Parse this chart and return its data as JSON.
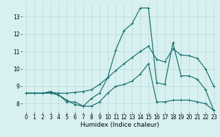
{
  "title": "",
  "xlabel": "Humidex (Indice chaleur)",
  "bg_color": "#d8f0f0",
  "line_color": "#1a7070",
  "grid_color": "#b8d8d8",
  "x_ticks": [
    0,
    1,
    2,
    3,
    4,
    5,
    6,
    7,
    8,
    9,
    10,
    11,
    12,
    13,
    14,
    15,
    16,
    17,
    18,
    19,
    20,
    21,
    22,
    23
  ],
  "y_ticks": [
    8,
    9,
    10,
    11,
    12,
    13
  ],
  "ylim": [
    7.5,
    13.8
  ],
  "xlim": [
    -0.5,
    23.5
  ],
  "series": {
    "line1_x": [
      0,
      1,
      2,
      3,
      4,
      5,
      6,
      7,
      8,
      9,
      10,
      11,
      12,
      13,
      14,
      15,
      16,
      17,
      18,
      19,
      20,
      21,
      22,
      23
    ],
    "line1_y": [
      8.6,
      8.6,
      8.6,
      8.7,
      8.5,
      8.1,
      8.1,
      7.85,
      8.3,
      8.6,
      9.5,
      11.1,
      12.2,
      12.6,
      13.5,
      13.5,
      9.2,
      9.1,
      11.5,
      9.6,
      9.6,
      9.4,
      8.8,
      7.6
    ],
    "line2_x": [
      0,
      1,
      2,
      3,
      4,
      5,
      6,
      7,
      8,
      9,
      10,
      11,
      12,
      13,
      14,
      15,
      16,
      17,
      18,
      19,
      20,
      21,
      22,
      23
    ],
    "line2_y": [
      8.6,
      8.6,
      8.6,
      8.6,
      8.5,
      8.2,
      7.95,
      7.85,
      7.85,
      8.1,
      8.6,
      9.0,
      9.1,
      9.3,
      9.7,
      10.3,
      8.1,
      8.1,
      8.2,
      8.2,
      8.2,
      8.1,
      8.0,
      7.6
    ],
    "line3_x": [
      0,
      1,
      2,
      3,
      4,
      5,
      6,
      7,
      8,
      9,
      10,
      11,
      12,
      13,
      14,
      15,
      16,
      17,
      18,
      19,
      20,
      21,
      22,
      23
    ],
    "line3_y": [
      8.6,
      8.6,
      8.6,
      8.65,
      8.6,
      8.6,
      8.65,
      8.7,
      8.8,
      9.1,
      9.5,
      9.9,
      10.3,
      10.65,
      11.0,
      11.3,
      10.55,
      10.4,
      11.15,
      10.8,
      10.75,
      10.6,
      10.0,
      9.0
    ]
  },
  "marker": "+",
  "markersize": 3.0,
  "linewidth": 0.9,
  "xlabel_fontsize": 6.5,
  "tick_fontsize": 5.5
}
